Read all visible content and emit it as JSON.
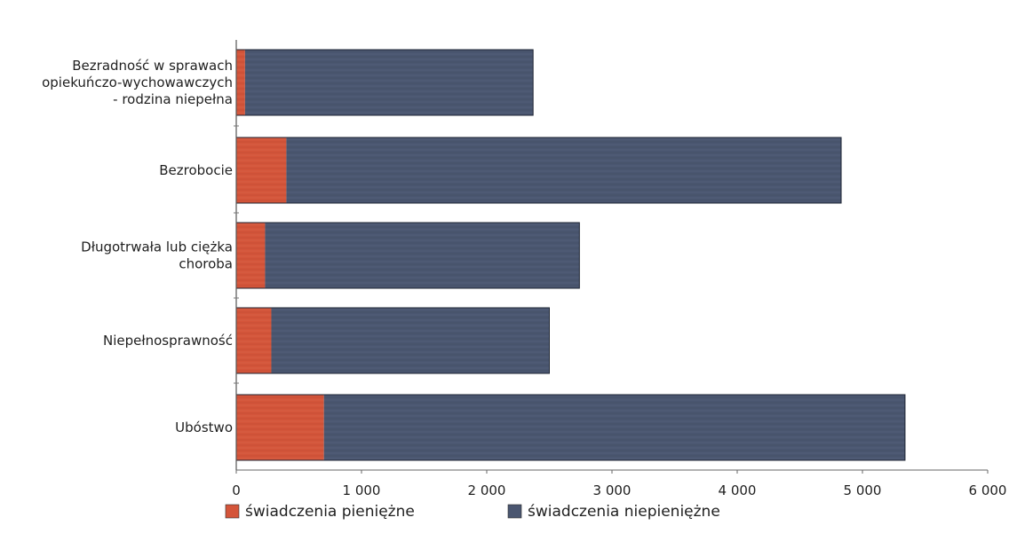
{
  "chart_data": {
    "type": "bar",
    "orientation": "horizontal",
    "stacked": true,
    "categories": [
      [
        "Bezradność w sprawach",
        "opiekuńczo-wychowawczych",
        "- rodzina niepełna"
      ],
      [
        "Bezrobocie"
      ],
      [
        "Długotrwała lub ciężka",
        "choroba"
      ],
      [
        "Niepełnosprawność"
      ],
      [
        "Ubóstwo"
      ]
    ],
    "series": [
      {
        "name": "świadczenia pieniężne",
        "color": "#d4553a",
        "values": [
          70,
          400,
          230,
          280,
          700
        ]
      },
      {
        "name": "świadczenia niepieniężne",
        "color": "#4a5670",
        "values": [
          2300,
          4430,
          2510,
          2220,
          4640
        ]
      }
    ],
    "xlim": [
      0,
      6000
    ],
    "xticks": [
      0,
      1000,
      2000,
      3000,
      4000,
      5000,
      6000
    ],
    "xtick_labels": [
      "0",
      "1 000",
      "2 000",
      "3 000",
      "4 000",
      "5 000",
      "6 000"
    ],
    "legend_position": "bottom-left",
    "grid": false
  }
}
